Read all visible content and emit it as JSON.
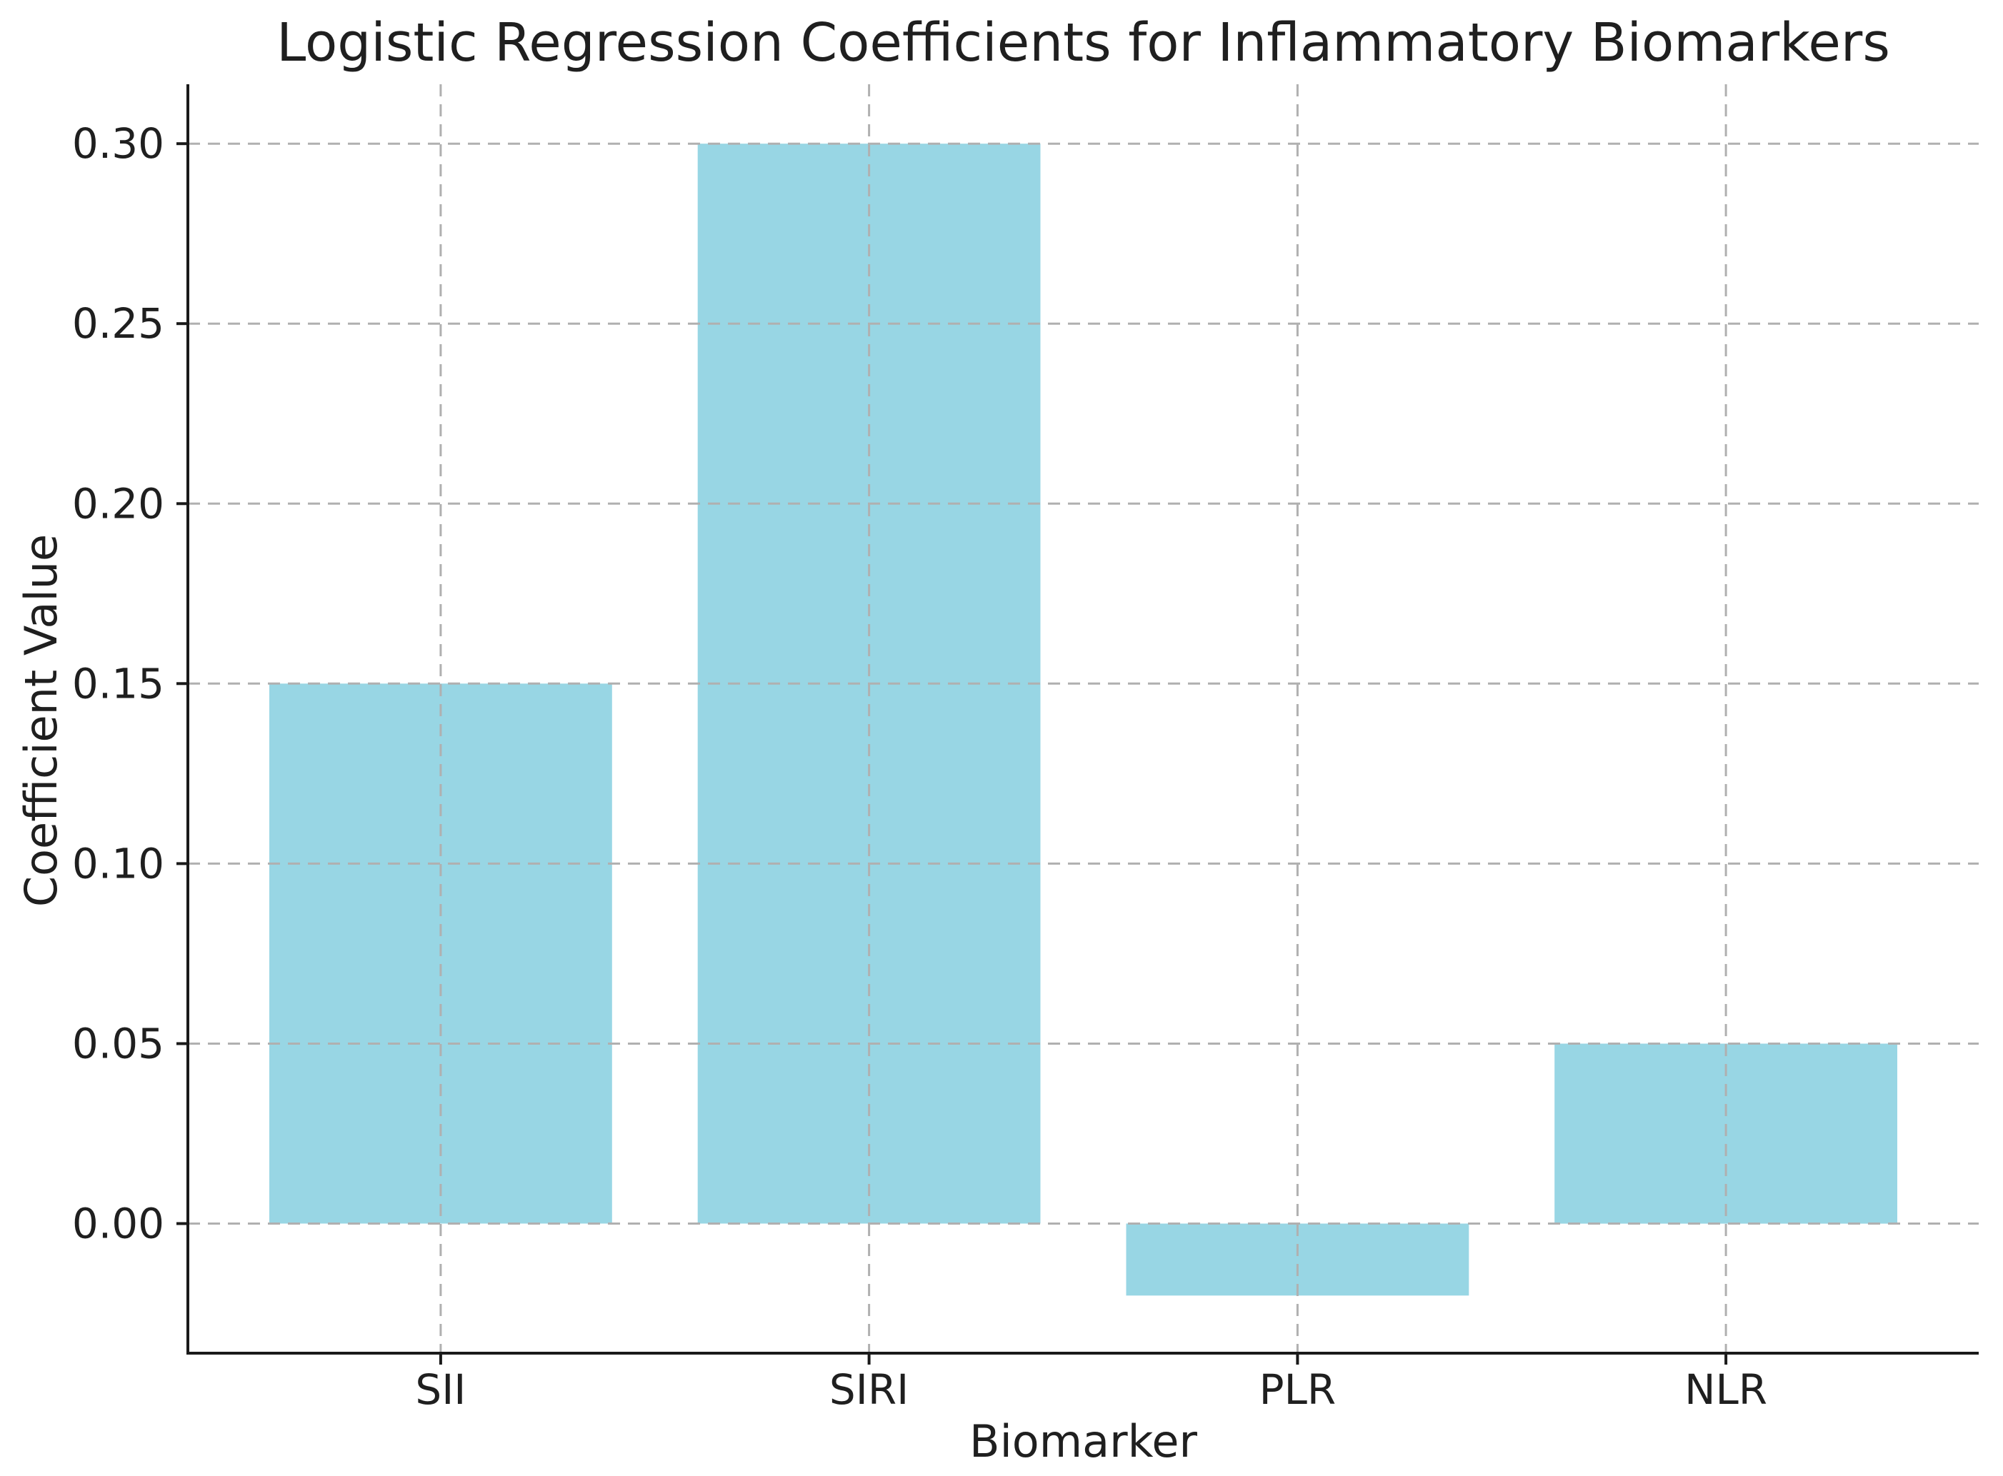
{
  "chart_data": {
    "type": "bar",
    "title": "Logistic Regression Coefficients for Inflammatory Biomarkers",
    "xlabel": "Biomarker",
    "ylabel": "Coefficient Value",
    "categories": [
      "SII",
      "SIRI",
      "PLR",
      "NLR"
    ],
    "values": [
      0.15,
      0.3,
      -0.02,
      0.05
    ],
    "yticks": [
      0.0,
      0.05,
      0.1,
      0.15,
      0.2,
      0.25,
      0.3
    ],
    "ytick_labels": [
      "0.00",
      "0.05",
      "0.10",
      "0.15",
      "0.20",
      "0.25",
      "0.30"
    ],
    "ylim": [
      -0.036,
      0.3165
    ],
    "bar_width_fraction": 0.8,
    "grid": true,
    "grid_style": "dashed",
    "legend": "none",
    "colors": {
      "bar": "#98d6e4",
      "grid": "#b0b0b0",
      "spine": "#1a1a1a",
      "text": "#1f1f1f",
      "background": "#ffffff"
    }
  }
}
